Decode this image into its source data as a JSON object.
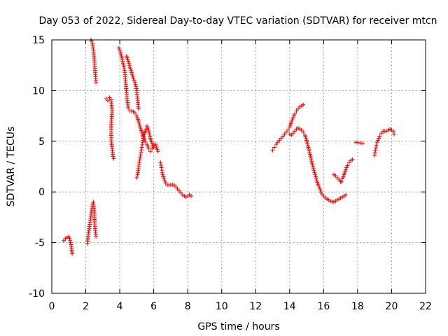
{
  "chart_data": {
    "type": "scatter",
    "title": "Day 053 of 2022, Sidereal Day-to-day VTEC variation (SDTVAR) for receiver mtcn",
    "xlabel": "GPS time / hours",
    "ylabel": "SDTVAR / TECUs",
    "xlim": [
      0,
      22
    ],
    "ylim": [
      -10,
      15
    ],
    "xticks": [
      "0",
      "2",
      "4",
      "6",
      "8",
      "10",
      "12",
      "14",
      "16",
      "18",
      "20",
      "22"
    ],
    "yticks": [
      "-10",
      "-5",
      "0",
      "5",
      "10",
      "15"
    ],
    "grid": true,
    "marker": "+",
    "series_color": "#ff0000",
    "segments": [
      {
        "name": "arc-a",
        "points": [
          [
            0.7,
            -4.8
          ],
          [
            0.8,
            -4.6
          ],
          [
            0.9,
            -4.5
          ],
          [
            1.0,
            -4.4
          ],
          [
            1.05,
            -4.6
          ],
          [
            1.1,
            -5.0
          ],
          [
            1.15,
            -5.4
          ],
          [
            1.2,
            -6.1
          ]
        ]
      },
      {
        "name": "arc-b",
        "points": [
          [
            2.1,
            -5.1
          ],
          [
            2.15,
            -4.2
          ],
          [
            2.2,
            -3.6
          ],
          [
            2.25,
            -3.0
          ],
          [
            2.3,
            -2.4
          ],
          [
            2.35,
            -1.8
          ],
          [
            2.4,
            -1.2
          ],
          [
            2.45,
            -1.0
          ],
          [
            2.5,
            -2.0
          ],
          [
            2.55,
            -3.6
          ],
          [
            2.6,
            -4.4
          ]
        ]
      },
      {
        "name": "arc-c",
        "points": [
          [
            2.3,
            15.0
          ],
          [
            2.35,
            14.9
          ],
          [
            2.4,
            14.6
          ],
          [
            2.45,
            14.0
          ],
          [
            2.5,
            13.0
          ],
          [
            2.55,
            12.0
          ],
          [
            2.6,
            10.8
          ]
        ]
      },
      {
        "name": "arc-d",
        "points": [
          [
            3.2,
            9.2
          ],
          [
            3.3,
            9.0
          ],
          [
            3.4,
            9.3
          ],
          [
            3.5,
            9.1
          ],
          [
            3.55,
            8.0
          ],
          [
            3.5,
            6.5
          ],
          [
            3.5,
            5.2
          ],
          [
            3.55,
            4.3
          ],
          [
            3.6,
            3.5
          ],
          [
            3.65,
            3.3
          ]
        ]
      },
      {
        "name": "arc-e",
        "points": [
          [
            3.95,
            14.2
          ],
          [
            4.0,
            14.0
          ],
          [
            4.1,
            13.4
          ],
          [
            4.2,
            12.7
          ],
          [
            4.3,
            11.8
          ],
          [
            4.35,
            10.8
          ],
          [
            4.4,
            9.8
          ],
          [
            4.45,
            9.0
          ],
          [
            4.5,
            8.3
          ],
          [
            4.6,
            8.0
          ],
          [
            4.7,
            8.0
          ],
          [
            4.8,
            7.9
          ],
          [
            4.9,
            7.8
          ],
          [
            5.0,
            7.5
          ],
          [
            5.1,
            7.0
          ],
          [
            5.2,
            6.4
          ],
          [
            5.3,
            5.9
          ],
          [
            5.4,
            5.4
          ],
          [
            5.5,
            5.0
          ],
          [
            5.6,
            4.7
          ],
          [
            5.7,
            4.3
          ],
          [
            5.8,
            4.0
          ],
          [
            5.9,
            4.3
          ],
          [
            6.0,
            4.6
          ],
          [
            6.1,
            4.7
          ],
          [
            6.2,
            4.2
          ],
          [
            6.25,
            4.0
          ]
        ]
      },
      {
        "name": "arc-f",
        "points": [
          [
            4.4,
            13.4
          ],
          [
            4.5,
            12.9
          ],
          [
            4.6,
            12.3
          ],
          [
            4.7,
            11.8
          ],
          [
            4.8,
            11.2
          ],
          [
            4.9,
            10.8
          ],
          [
            5.0,
            10.0
          ],
          [
            5.05,
            9.2
          ],
          [
            5.1,
            8.2
          ]
        ]
      },
      {
        "name": "arc-g",
        "points": [
          [
            5.0,
            1.4
          ],
          [
            5.05,
            1.7
          ],
          [
            5.1,
            2.3
          ],
          [
            5.15,
            2.9
          ],
          [
            5.2,
            3.4
          ],
          [
            5.25,
            3.9
          ],
          [
            5.3,
            4.4
          ],
          [
            5.35,
            4.9
          ],
          [
            5.4,
            5.5
          ],
          [
            5.5,
            6.0
          ],
          [
            5.55,
            6.2
          ],
          [
            5.6,
            6.5
          ],
          [
            5.7,
            6.1
          ],
          [
            5.8,
            5.3
          ],
          [
            5.9,
            4.8
          ],
          [
            6.0,
            4.4
          ]
        ]
      },
      {
        "name": "arc-h",
        "points": [
          [
            6.4,
            2.9
          ],
          [
            6.45,
            2.4
          ],
          [
            6.5,
            1.9
          ],
          [
            6.6,
            1.3
          ],
          [
            6.7,
            0.9
          ],
          [
            6.8,
            0.7
          ],
          [
            6.9,
            0.7
          ],
          [
            7.0,
            0.7
          ],
          [
            7.1,
            0.7
          ],
          [
            7.2,
            0.7
          ],
          [
            7.3,
            0.5
          ],
          [
            7.4,
            0.3
          ],
          [
            7.5,
            0.1
          ],
          [
            7.6,
            -0.1
          ],
          [
            7.7,
            -0.3
          ],
          [
            7.8,
            -0.4
          ],
          [
            7.9,
            -0.5
          ],
          [
            8.0,
            -0.4
          ],
          [
            8.1,
            -0.3
          ],
          [
            8.2,
            -0.4
          ]
        ]
      },
      {
        "name": "arc-i",
        "points": [
          [
            13.0,
            4.1
          ],
          [
            13.1,
            4.4
          ],
          [
            13.2,
            4.7
          ],
          [
            13.3,
            4.9
          ],
          [
            13.4,
            5.1
          ],
          [
            13.5,
            5.3
          ],
          [
            13.6,
            5.5
          ],
          [
            13.7,
            5.7
          ],
          [
            13.8,
            5.9
          ],
          [
            13.9,
            6.1
          ],
          [
            14.0,
            6.4
          ],
          [
            14.1,
            6.9
          ],
          [
            14.2,
            7.3
          ],
          [
            14.3,
            7.7
          ],
          [
            14.4,
            8.0
          ],
          [
            14.5,
            8.2
          ],
          [
            14.6,
            8.4
          ],
          [
            14.7,
            8.5
          ],
          [
            14.8,
            8.6
          ]
        ]
      },
      {
        "name": "arc-j",
        "points": [
          [
            14.0,
            5.7
          ],
          [
            14.1,
            5.6
          ],
          [
            14.2,
            5.8
          ],
          [
            14.3,
            6.0
          ],
          [
            14.4,
            6.2
          ],
          [
            14.5,
            6.3
          ],
          [
            14.6,
            6.2
          ],
          [
            14.7,
            6.1
          ],
          [
            14.8,
            5.9
          ],
          [
            14.9,
            5.6
          ],
          [
            15.0,
            5.1
          ],
          [
            15.1,
            4.4
          ],
          [
            15.2,
            3.7
          ],
          [
            15.3,
            3.0
          ],
          [
            15.4,
            2.3
          ],
          [
            15.5,
            1.7
          ],
          [
            15.6,
            1.1
          ],
          [
            15.7,
            0.6
          ],
          [
            15.8,
            0.2
          ],
          [
            15.9,
            -0.2
          ],
          [
            16.0,
            -0.4
          ],
          [
            16.1,
            -0.6
          ],
          [
            16.2,
            -0.7
          ],
          [
            16.3,
            -0.8
          ],
          [
            16.4,
            -0.9
          ],
          [
            16.5,
            -0.95
          ],
          [
            16.6,
            -1.0
          ],
          [
            16.7,
            -0.9
          ],
          [
            16.8,
            -0.8
          ],
          [
            16.9,
            -0.7
          ],
          [
            17.0,
            -0.6
          ],
          [
            17.1,
            -0.5
          ],
          [
            17.2,
            -0.4
          ],
          [
            17.3,
            -0.3
          ]
        ]
      },
      {
        "name": "arc-k",
        "points": [
          [
            16.6,
            1.7
          ],
          [
            16.7,
            1.6
          ],
          [
            16.8,
            1.4
          ],
          [
            16.9,
            1.2
          ],
          [
            17.0,
            1.0
          ],
          [
            17.05,
            1.0
          ],
          [
            17.1,
            1.3
          ],
          [
            17.2,
            1.7
          ],
          [
            17.3,
            2.2
          ],
          [
            17.4,
            2.6
          ],
          [
            17.5,
            2.9
          ],
          [
            17.6,
            3.1
          ],
          [
            17.7,
            3.2
          ]
        ]
      },
      {
        "name": "arc-l",
        "points": [
          [
            17.9,
            4.9
          ],
          [
            18.3,
            4.8
          ]
        ]
      },
      {
        "name": "arc-m",
        "points": [
          [
            19.0,
            3.6
          ],
          [
            19.05,
            4.1
          ],
          [
            19.1,
            4.6
          ],
          [
            19.15,
            4.9
          ],
          [
            19.2,
            5.1
          ],
          [
            19.3,
            5.5
          ],
          [
            19.4,
            5.8
          ],
          [
            19.5,
            6.0
          ],
          [
            19.6,
            6.0
          ],
          [
            19.7,
            6.0
          ],
          [
            19.8,
            6.1
          ],
          [
            19.9,
            6.2
          ],
          [
            20.0,
            6.1
          ],
          [
            20.1,
            6.0
          ],
          [
            20.15,
            5.7
          ]
        ]
      }
    ]
  }
}
